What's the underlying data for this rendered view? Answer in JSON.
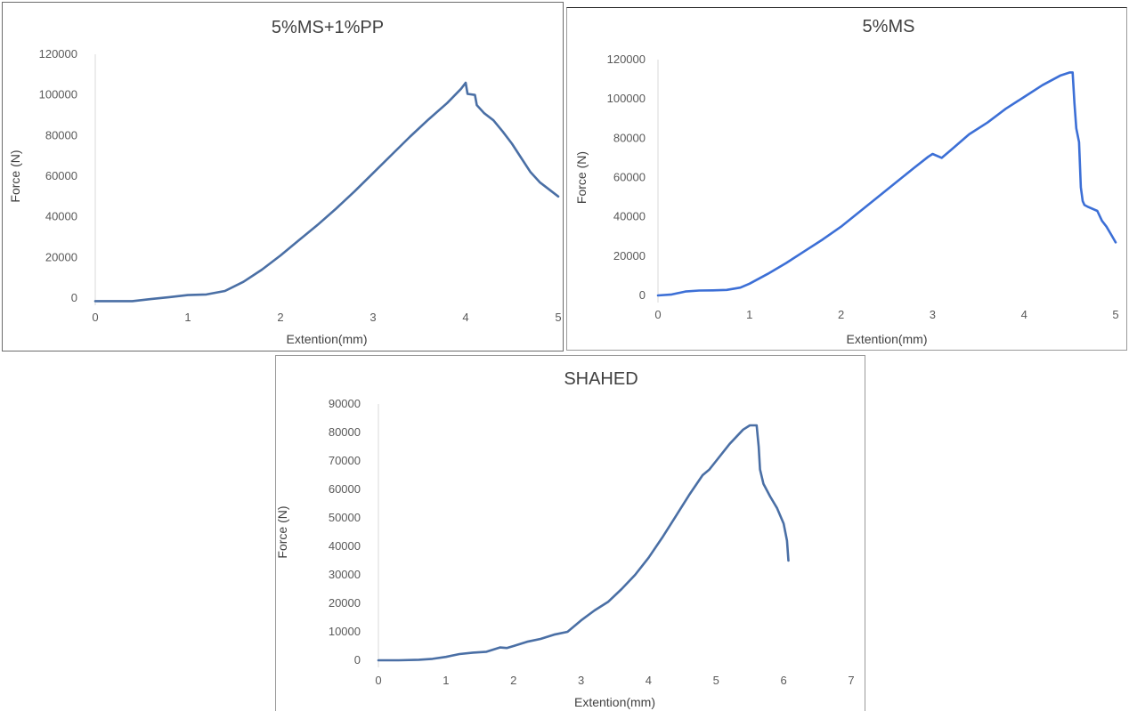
{
  "chart_data": [
    {
      "type": "line",
      "title": "5%MS+1%PP",
      "xlabel": "Extention(mm)",
      "ylabel": "Force (N)",
      "xlim": [
        0,
        5
      ],
      "ylim": [
        0,
        120000
      ],
      "xticks": [
        0,
        1,
        2,
        3,
        4,
        5
      ],
      "yticks": [
        0,
        20000,
        40000,
        60000,
        80000,
        100000,
        120000
      ],
      "line_color": "#4a6fa5",
      "grid": false,
      "series": [
        {
          "x": [
            0,
            0.4,
            0.6,
            0.8,
            1.0,
            1.2,
            1.4,
            1.6,
            1.8,
            2.0,
            2.2,
            2.4,
            2.6,
            2.8,
            3.0,
            3.2,
            3.4,
            3.6,
            3.8,
            3.95,
            4.0,
            4.02,
            4.1,
            4.12,
            4.2,
            4.3,
            4.4,
            4.5,
            4.6,
            4.7,
            4.8,
            4.9,
            5.0
          ],
          "y": [
            -1500,
            -1500,
            -500,
            500,
            1500,
            1800,
            3500,
            8000,
            14000,
            21000,
            28500,
            36000,
            44000,
            52500,
            61500,
            70500,
            79500,
            88000,
            96000,
            103000,
            106000,
            100500,
            100000,
            95000,
            91000,
            87500,
            82000,
            76000,
            69000,
            62000,
            57000,
            53500,
            50000
          ]
        }
      ]
    },
    {
      "type": "line",
      "title": "5%MS",
      "xlabel": "Extention(mm)",
      "ylabel": "Force (N)",
      "xlim": [
        0,
        5
      ],
      "ylim": [
        0,
        120000
      ],
      "xticks": [
        0,
        1,
        2,
        3,
        4,
        5
      ],
      "yticks": [
        0,
        20000,
        40000,
        60000,
        80000,
        100000,
        120000
      ],
      "line_color": "#3c6fd6",
      "grid": false,
      "series": [
        {
          "x": [
            0,
            0.15,
            0.3,
            0.45,
            0.6,
            0.75,
            0.9,
            1.0,
            1.2,
            1.4,
            1.6,
            1.8,
            2.0,
            2.2,
            2.4,
            2.6,
            2.8,
            2.95,
            3.0,
            3.1,
            3.2,
            3.4,
            3.6,
            3.8,
            4.0,
            4.2,
            4.4,
            4.5,
            4.53,
            4.55,
            4.57,
            4.6,
            4.62,
            4.64,
            4.66,
            4.7,
            4.8,
            4.85,
            4.9,
            4.95,
            5.0
          ],
          "y": [
            0,
            500,
            2000,
            2500,
            2600,
            2800,
            4000,
            6000,
            11000,
            16500,
            22500,
            28500,
            35000,
            42500,
            50000,
            57500,
            65000,
            70500,
            72000,
            70000,
            74000,
            82000,
            88000,
            95000,
            101000,
            107000,
            112000,
            113500,
            113500,
            98000,
            85000,
            78000,
            55000,
            48000,
            46000,
            45000,
            43000,
            38000,
            35000,
            31000,
            27000
          ]
        }
      ]
    },
    {
      "type": "line",
      "title": "SHAHED",
      "xlabel": "Extention(mm)",
      "ylabel": "Force (N)",
      "xlim": [
        0,
        7
      ],
      "ylim": [
        0,
        90000
      ],
      "xticks": [
        0,
        1,
        2,
        3,
        4,
        5,
        6,
        7
      ],
      "yticks": [
        0,
        10000,
        20000,
        30000,
        40000,
        50000,
        60000,
        70000,
        80000,
        90000
      ],
      "line_color": "#4a6fa5",
      "grid": false,
      "series": [
        {
          "x": [
            0,
            0.3,
            0.6,
            0.8,
            1.0,
            1.2,
            1.4,
            1.6,
            1.8,
            1.9,
            2.0,
            2.2,
            2.4,
            2.6,
            2.8,
            3.0,
            3.2,
            3.4,
            3.6,
            3.8,
            4.0,
            4.2,
            4.4,
            4.6,
            4.8,
            4.9,
            5.0,
            5.2,
            5.4,
            5.5,
            5.6,
            5.63,
            5.65,
            5.7,
            5.8,
            5.9,
            6.0,
            6.05,
            6.07
          ],
          "y": [
            0,
            0,
            200,
            500,
            1200,
            2200,
            2700,
            3000,
            4500,
            4300,
            5000,
            6500,
            7500,
            9000,
            10000,
            14000,
            17500,
            20500,
            25000,
            30000,
            36000,
            43000,
            50500,
            58000,
            65000,
            67000,
            70000,
            76000,
            81000,
            82500,
            82500,
            75000,
            67000,
            62000,
            57500,
            53500,
            48000,
            42000,
            35000
          ]
        }
      ]
    }
  ]
}
